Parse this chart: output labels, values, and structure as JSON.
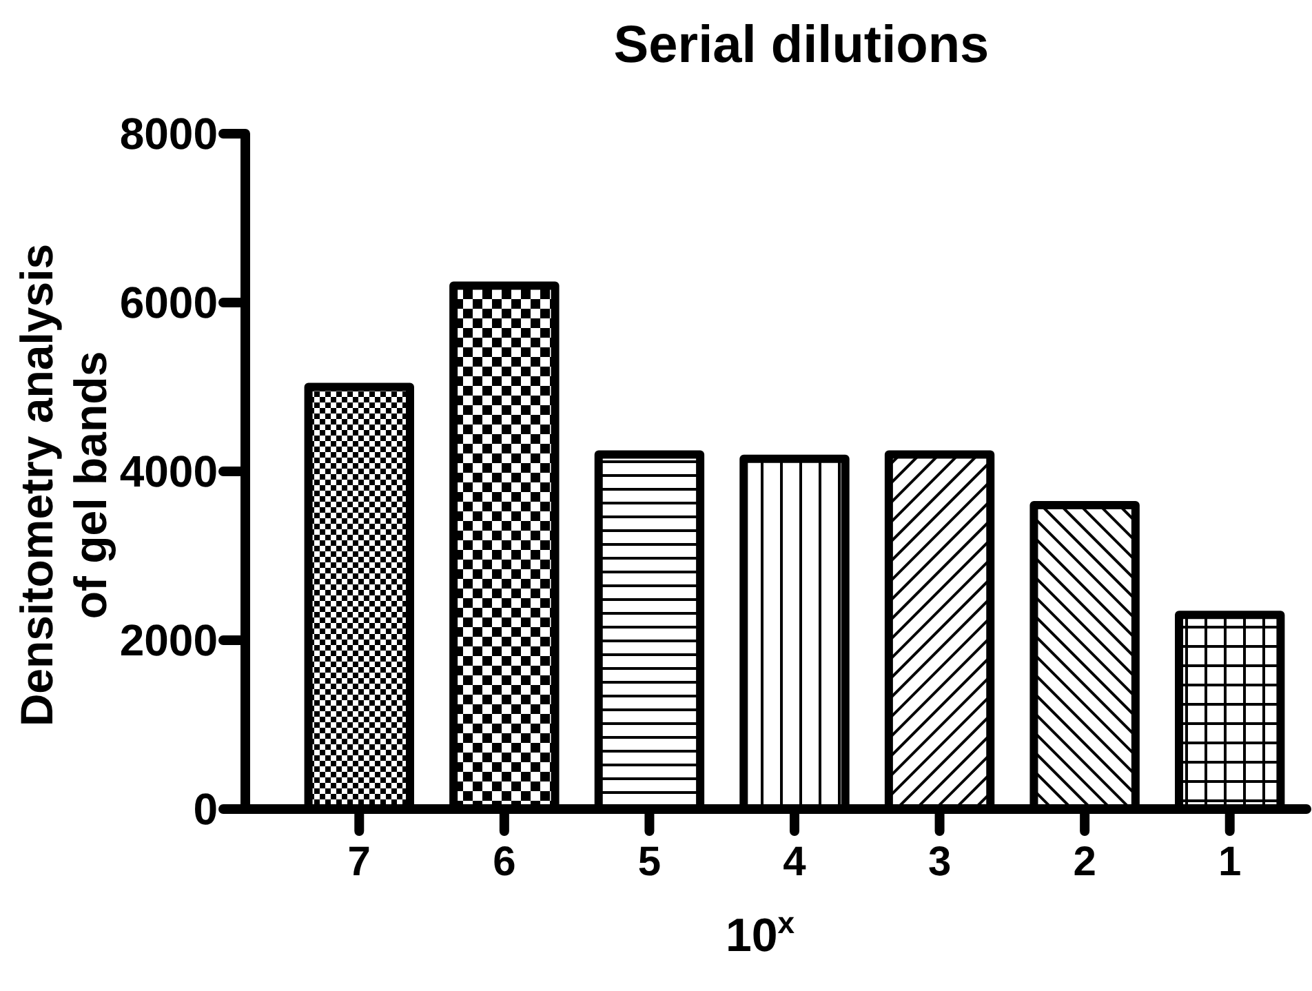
{
  "chart_data": {
    "type": "bar",
    "title": "Serial dilutions",
    "xlabel": "10$^{x}$",
    "ylabel": "Densitometry analysis of gel bands",
    "categories": [
      "7",
      "6",
      "5",
      "4",
      "3",
      "2",
      "1"
    ],
    "values": [
      5000,
      6200,
      4200,
      4150,
      4200,
      3600,
      2300
    ],
    "color": "#000000",
    "ylim": [
      0,
      8000
    ],
    "yticks": [
      0,
      2000,
      4000,
      6000,
      8000
    ],
    "grid": false
  }
}
